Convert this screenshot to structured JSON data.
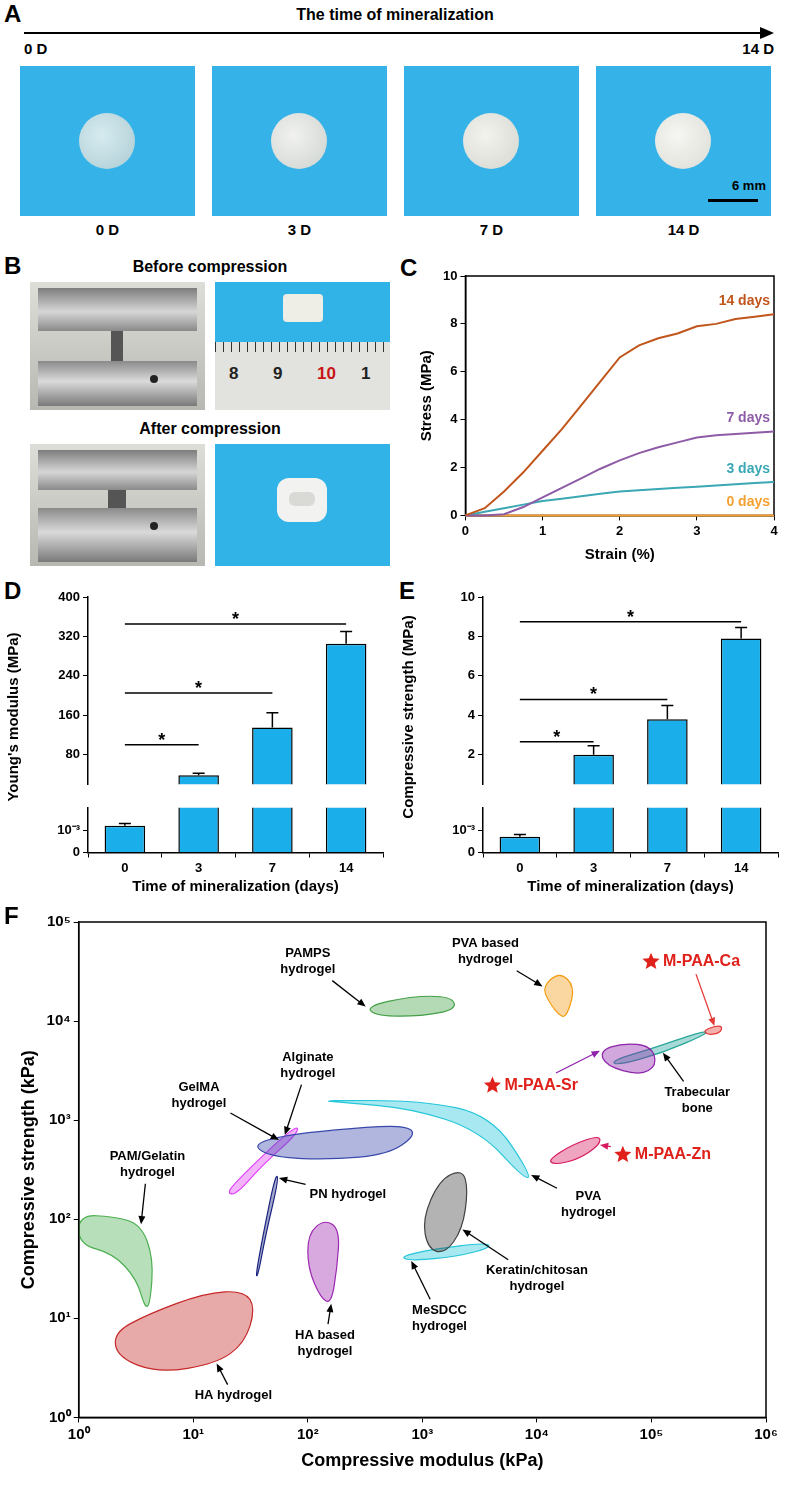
{
  "figure": {
    "panel_a": {
      "letter": "A",
      "title": "The time of mineralization",
      "axis_start": "0 D",
      "axis_end": "14 D",
      "photos": [
        "0 D",
        "3 D",
        "7 D",
        "14 D"
      ],
      "scale_bar": "6 mm"
    },
    "panel_b": {
      "letter": "B",
      "headings": [
        "Before compression",
        "After compression"
      ],
      "ruler_labels": [
        "8",
        "9",
        "10",
        "1"
      ]
    }
  },
  "chart_data": [
    {
      "type": "line",
      "panel": "C",
      "x_label": "Strain (%)",
      "y_label": "Stress (MPa)",
      "x": [
        0,
        0.25,
        0.5,
        0.75,
        1,
        1.25,
        1.5,
        1.75,
        2,
        2.25,
        2.5,
        2.75,
        3,
        3.25,
        3.5,
        3.75,
        4
      ],
      "xlim": [
        0,
        4
      ],
      "xticks": [
        0,
        1,
        2,
        3,
        4
      ],
      "ylim": [
        0,
        10
      ],
      "yticks": [
        0,
        2,
        4,
        6,
        8,
        10
      ],
      "series": [
        {
          "name": "14 days",
          "color": "#c0561b",
          "values": [
            0,
            0.3,
            1.0,
            1.8,
            2.7,
            3.6,
            4.6,
            5.6,
            6.6,
            7.1,
            7.4,
            7.6,
            7.9,
            8.0,
            8.2,
            8.3,
            8.4
          ]
        },
        {
          "name": "7 days",
          "color": "#8e5ba6",
          "values": [
            0,
            0,
            0.05,
            0.35,
            0.75,
            1.15,
            1.55,
            1.95,
            2.3,
            2.6,
            2.85,
            3.05,
            3.25,
            3.35,
            3.4,
            3.45,
            3.5
          ]
        },
        {
          "name": "3 days",
          "color": "#3ba7b5",
          "values": [
            0,
            0.15,
            0.3,
            0.45,
            0.6,
            0.7,
            0.8,
            0.9,
            1.0,
            1.05,
            1.1,
            1.15,
            1.2,
            1.25,
            1.3,
            1.35,
            1.4
          ]
        },
        {
          "name": "0 days",
          "color": "#f5a030",
          "values": [
            0,
            0,
            0,
            0,
            0,
            0,
            0,
            0,
            0,
            0,
            0,
            0,
            0,
            0,
            0,
            0,
            0
          ]
        }
      ]
    },
    {
      "type": "bar",
      "panel": "D",
      "x_label": "Time of mineralization (days)",
      "y_label": "Young's modulus (MPa)",
      "categories": [
        "0",
        "3",
        "7",
        "14"
      ],
      "values": [
        0.0012,
        38,
        135,
        305
      ],
      "errors": [
        0.0001,
        4,
        30,
        25
      ],
      "color": "#1aaeea",
      "ylim": [
        0,
        400
      ],
      "ybreak": [
        0.002,
        20
      ],
      "yticks": [
        0,
        {
          "value": 0.001,
          "label": "10⁻³"
        },
        80,
        160,
        240,
        320,
        400
      ],
      "annotations": [
        {
          "from": "0",
          "to": "3",
          "y": 100,
          "text": "*"
        },
        {
          "from": "0",
          "to": "7",
          "y": 205,
          "text": "*"
        },
        {
          "from": "0",
          "to": "14",
          "y": 345,
          "text": "*"
        }
      ]
    },
    {
      "type": "bar",
      "panel": "E",
      "x_label": "Time of mineralization (days)",
      "y_label": "Compressive strength (MPa)",
      "categories": [
        "0",
        "3",
        "7",
        "14"
      ],
      "values": [
        0.0007,
        2.0,
        3.8,
        7.9
      ],
      "errors": [
        0.0001,
        0.45,
        0.7,
        0.55
      ],
      "color": "#1aaeea",
      "ylim": [
        0,
        10
      ],
      "ybreak": [
        0.002,
        0.5
      ],
      "yticks": [
        0,
        {
          "value": 0.001,
          "label": "10⁻³"
        },
        2,
        4,
        6,
        8,
        10
      ],
      "annotations": [
        {
          "from": "0",
          "to": "3",
          "y": 2.65,
          "text": "*"
        },
        {
          "from": "0",
          "to": "7",
          "y": 4.8,
          "text": "*"
        },
        {
          "from": "0",
          "to": "14",
          "y": 8.75,
          "text": "*"
        }
      ]
    },
    {
      "type": "region",
      "panel": "F",
      "x_label": "Compressive modulus (kPa)",
      "y_label": "Compressive strength (kPa)",
      "log": true,
      "xlim": [
        1,
        1000000
      ],
      "ylim": [
        1,
        100000
      ],
      "xticks": [
        {
          "value": 1,
          "label": "10⁰"
        },
        {
          "value": 10,
          "label": "10¹"
        },
        {
          "value": 100,
          "label": "10²"
        },
        {
          "value": 1000,
          "label": "10³"
        },
        {
          "value": 10000,
          "label": "10⁴"
        },
        {
          "value": 100000,
          "label": "10⁵"
        },
        {
          "value": 1000000,
          "label": "10⁶"
        }
      ],
      "yticks": [
        {
          "value": 1,
          "label": "10⁰"
        },
        {
          "value": 10,
          "label": "10¹"
        },
        {
          "value": 100,
          "label": "10²"
        },
        {
          "value": 1000,
          "label": "10³"
        },
        {
          "value": 10000,
          "label": "10⁴"
        },
        {
          "value": 100000,
          "label": "10⁵"
        }
      ],
      "series": [
        {
          "name": "PAM/Gelatin hydrogel",
          "color": "#4caf50",
          "points": [
            [
              1,
              110
            ],
            [
              2,
              107
            ],
            [
              3.5,
              89
            ],
            [
              4.5,
              40
            ],
            [
              4.2,
              14
            ],
            [
              3.8,
              12.6
            ],
            [
              3.2,
              25
            ],
            [
              2,
              45
            ],
            [
              1,
              56
            ]
          ]
        },
        {
          "name": "HA hydrogel",
          "color": "#c62828",
          "points": [
            [
              2,
              7.1
            ],
            [
              4,
              11
            ],
            [
              12.6,
              18
            ],
            [
              28,
              19
            ],
            [
              35,
              12.6
            ],
            [
              28,
              5.6
            ],
            [
              16,
              3.5
            ],
            [
              5,
              2.8
            ],
            [
              2.2,
              4
            ]
          ]
        },
        {
          "name": "GelMA hydrogel",
          "color": "#e040fb",
          "points": [
            [
              20,
              180
            ],
            [
              22,
              220
            ],
            [
              56,
              630
            ],
            [
              83,
              890
            ],
            [
              79,
              710
            ],
            [
              40,
              350
            ],
            [
              24,
              180
            ]
          ]
        },
        {
          "name": "PN hydrogel",
          "color": "#1a237e",
          "points": [
            [
              35,
              26
            ],
            [
              40,
              63
            ],
            [
              52,
              280
            ],
            [
              56,
              260
            ],
            [
              43,
              71
            ],
            [
              37,
              28
            ]
          ]
        },
        {
          "name": "Alginate hydrogel",
          "color": "#3949ab",
          "points": [
            [
              32,
              560
            ],
            [
              63,
              710
            ],
            [
              250,
              830
            ],
            [
              710,
              890
            ],
            [
              890,
              710
            ],
            [
              500,
              450
            ],
            [
              160,
              400
            ],
            [
              50,
              420
            ]
          ]
        },
        {
          "name": "HA based hydrogel",
          "color": "#9c27b0",
          "points": [
            [
              100,
              71
            ],
            [
              140,
              100
            ],
            [
              190,
              79
            ],
            [
              180,
              32
            ],
            [
              160,
              14
            ],
            [
              130,
              16
            ],
            [
              100,
              32
            ]
          ]
        },
        {
          "name": "MeSDCC hydrogel",
          "color": "#26c6da",
          "points": [
            [
              630,
              42
            ],
            [
              1260,
              50
            ],
            [
              3550,
              58
            ],
            [
              4000,
              52
            ],
            [
              2000,
              42
            ],
            [
              800,
              38
            ]
          ]
        },
        {
          "name": "Keratin/chitosan hydrogel",
          "color": "#424242",
          "points": [
            [
              1000,
              100
            ],
            [
              1410,
              250
            ],
            [
              2240,
              320
            ],
            [
              2510,
              200
            ],
            [
              2240,
              79
            ],
            [
              1580,
              45
            ],
            [
              1120,
              50
            ]
          ]
        },
        {
          "name": "PVA hydrogel",
          "color": "#26c6da",
          "points": [
            [
              126,
              1580
            ],
            [
              1000,
              1580
            ],
            [
              4000,
              1120
            ],
            [
              8900,
              280
            ],
            [
              7900,
              250
            ],
            [
              3160,
              790
            ],
            [
              790,
              1320
            ],
            [
              200,
              1510
            ]
          ]
        },
        {
          "name": "PAMPS hydrogel",
          "color": "#43a047",
          "points": [
            [
              320,
              14000
            ],
            [
              790,
              17800
            ],
            [
              1780,
              17800
            ],
            [
              2000,
              13200
            ],
            [
              1000,
              11200
            ],
            [
              400,
              11200
            ]
          ]
        },
        {
          "name": "PVA based hydrogel",
          "color": "#f39c12",
          "points": [
            [
              11200,
              22400
            ],
            [
              15800,
              31600
            ],
            [
              21400,
              22400
            ],
            [
              19000,
              12600
            ],
            [
              16600,
              10500
            ],
            [
              12600,
              15800
            ]
          ]
        },
        {
          "name": "Trabecular bone",
          "color": "#26a69a",
          "points": [
            [
              45000,
              4000
            ],
            [
              100000,
              5250
            ],
            [
              282000,
              7940
            ],
            [
              316000,
              7590
            ],
            [
              126000,
              4790
            ],
            [
              50000,
              3550
            ]
          ]
        },
        {
          "name": "M-PAA-Sr",
          "color": "#8e24aa",
          "marker": "star",
          "points": [
            [
              35500,
              5010
            ],
            [
              56000,
              6000
            ],
            [
              100000,
              5620
            ],
            [
              112000,
              3550
            ],
            [
              79000,
              2820
            ],
            [
              40000,
              3550
            ]
          ]
        },
        {
          "name": "M-PAA-Ca",
          "color": "#e53935",
          "marker": "star",
          "points": [
            [
              282000,
              7940
            ],
            [
              355000,
              8910
            ],
            [
              417000,
              8910
            ],
            [
              398000,
              7590
            ],
            [
              316000,
              7240
            ]
          ]
        },
        {
          "name": "M-PAA-Zn",
          "color": "#d81b60",
          "marker": "star",
          "points": [
            [
              12600,
              398
            ],
            [
              20000,
              562
            ],
            [
              35500,
              708
            ],
            [
              35500,
              562
            ],
            [
              22400,
              398
            ],
            [
              14100,
              355
            ]
          ]
        }
      ]
    }
  ]
}
